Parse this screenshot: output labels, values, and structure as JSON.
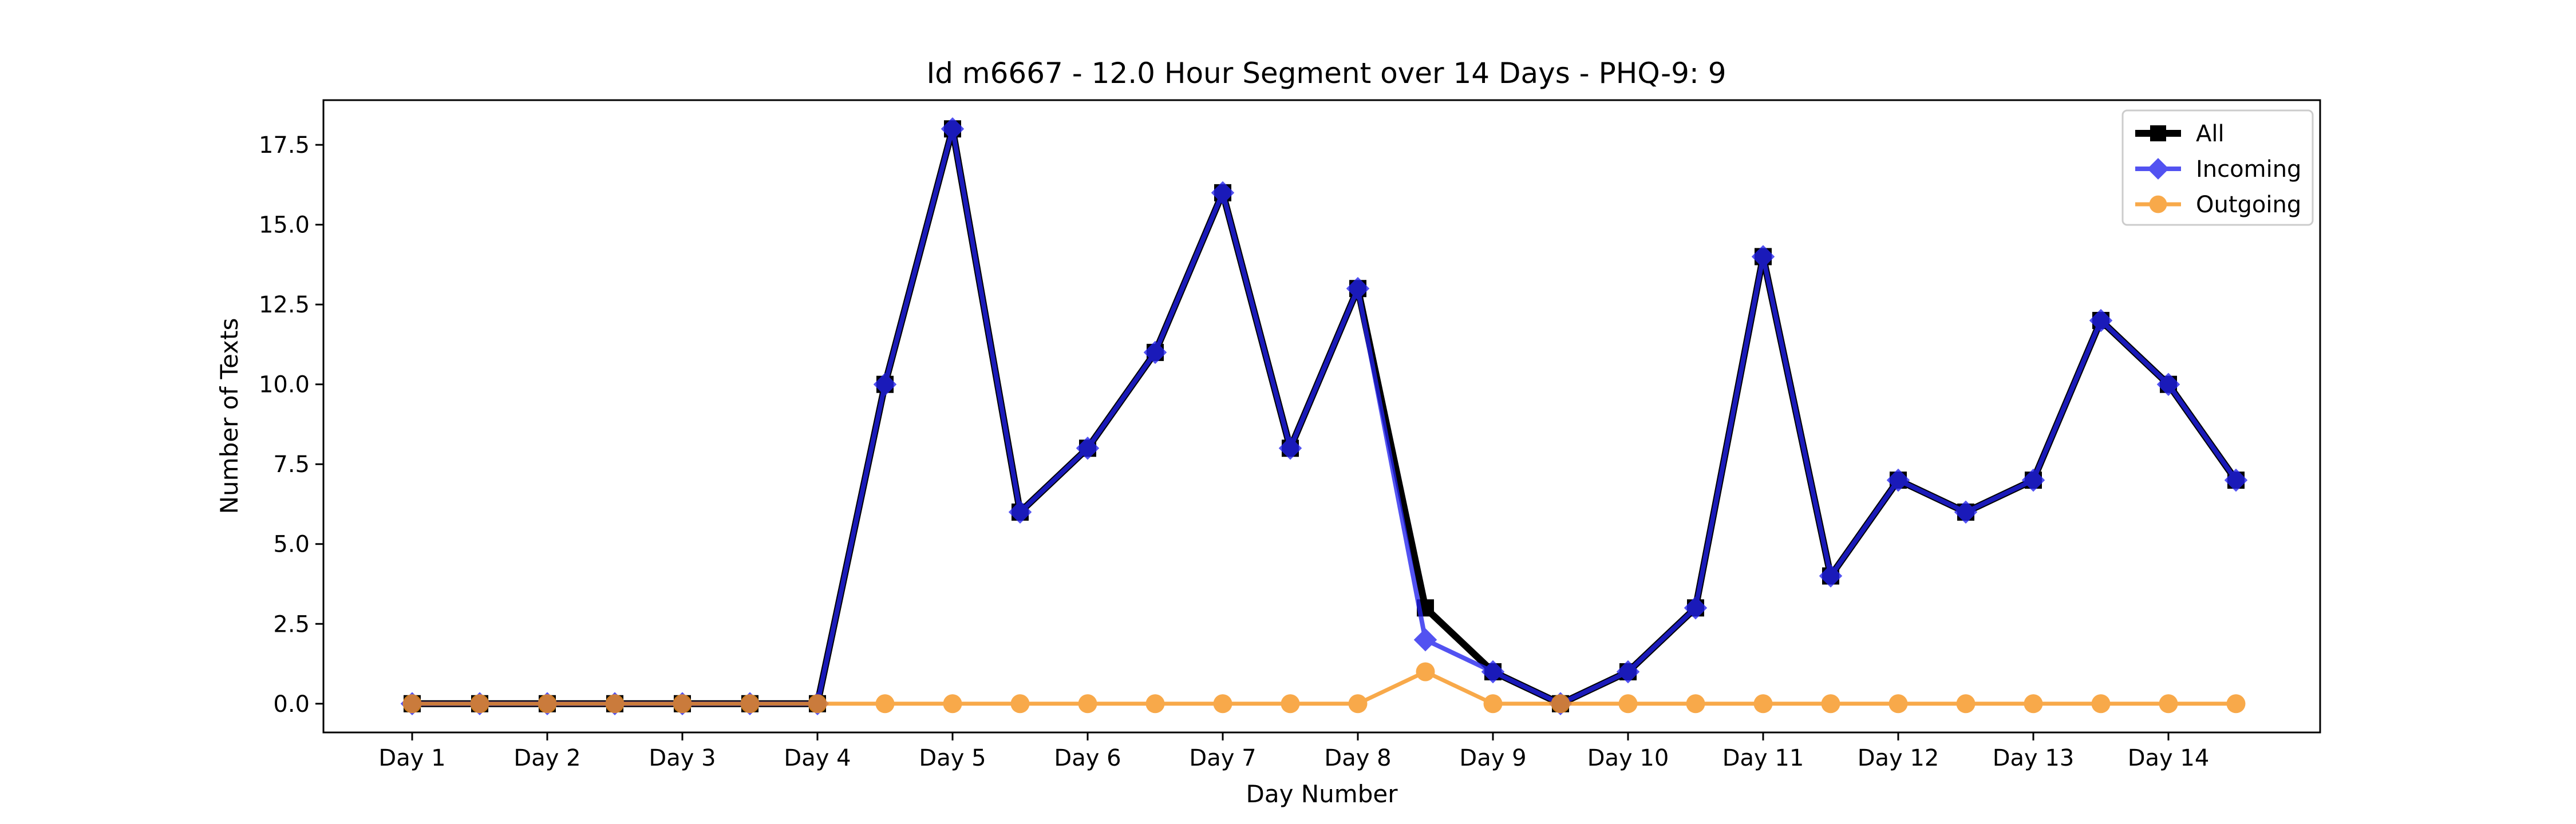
{
  "chart_data": {
    "type": "line",
    "title": "Id m6667 - 12.0 Hour Segment over 14 Days - PHQ-9: 9",
    "xlabel": "Day Number",
    "ylabel": "Number of Texts",
    "ylim": [
      -0.9,
      18.9
    ],
    "yticks": [
      0.0,
      2.5,
      5.0,
      7.5,
      10.0,
      12.5,
      15.0,
      17.5
    ],
    "ytick_labels": [
      "0.0",
      "2.5",
      "5.0",
      "7.5",
      "10.0",
      "12.5",
      "15.0",
      "17.5"
    ],
    "xtick_labels": [
      "Day 1",
      "Day 2",
      "Day 3",
      "Day 4",
      "Day 5",
      "Day 6",
      "Day 7",
      "Day 8",
      "Day 9",
      "Day 10",
      "Day 11",
      "Day 12",
      "Day 13",
      "Day 14"
    ],
    "x": [
      0,
      0.5,
      1,
      1.5,
      2,
      2.5,
      3,
      3.5,
      4,
      4.5,
      5,
      5.5,
      6,
      6.5,
      7,
      7.5,
      8,
      8.5,
      9,
      9.5,
      10,
      10.5,
      11,
      11.5,
      12,
      12.5,
      13,
      13.5
    ],
    "legend_position": "upper right",
    "grid": false,
    "series": [
      {
        "name": "All",
        "color": "#000000",
        "marker": "square",
        "values": [
          0,
          0,
          0,
          0,
          0,
          0,
          0,
          10,
          18,
          6,
          8,
          11,
          16,
          8,
          13,
          3,
          1,
          0,
          1,
          3,
          14,
          4,
          7,
          6,
          7,
          12,
          10,
          7
        ]
      },
      {
        "name": "Incoming",
        "color": "#2222ee",
        "marker": "diamond",
        "values": [
          0,
          0,
          0,
          0,
          0,
          0,
          0,
          10,
          18,
          6,
          8,
          11,
          16,
          8,
          13,
          2,
          1,
          0,
          1,
          3,
          14,
          4,
          7,
          6,
          7,
          12,
          10,
          7
        ]
      },
      {
        "name": "Outgoing",
        "color": "#f7941d",
        "marker": "circle",
        "values": [
          0,
          0,
          0,
          0,
          0,
          0,
          0,
          0,
          0,
          0,
          0,
          0,
          0,
          0,
          0,
          1,
          0,
          0,
          0,
          0,
          0,
          0,
          0,
          0,
          0,
          0,
          0,
          0
        ]
      }
    ]
  }
}
